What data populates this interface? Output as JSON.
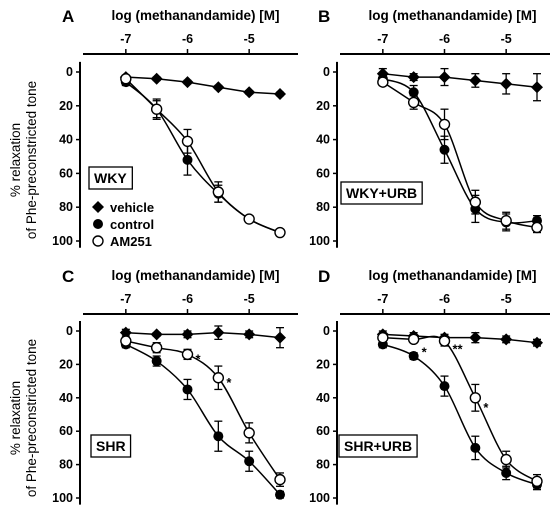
{
  "figure": {
    "ylabel_line1": "% relaxation",
    "ylabel_line2": "of Phe-preconstricted tone"
  },
  "legend": {
    "entries": [
      {
        "name": "vehicle",
        "marker": "diamond"
      },
      {
        "name": "control",
        "marker": "filled-circle"
      },
      {
        "name": "AM251",
        "marker": "open-circle"
      }
    ]
  },
  "chart_data": [
    {
      "panel": "A",
      "type": "scatter",
      "title": "",
      "xlabel": "log (methanandamide) [M]",
      "x_ticks": [
        -7,
        -6,
        -5
      ],
      "xlim": [
        -7.5,
        -4.5
      ],
      "y_ticks": [
        0,
        20,
        40,
        60,
        80,
        100
      ],
      "ylim": [
        100,
        -5
      ],
      "box_label": "WKY",
      "show_legend": true,
      "series": [
        {
          "name": "vehicle",
          "marker": "diamond",
          "x": [
            -7.0,
            -6.5,
            -6.0,
            -5.5,
            -5.0,
            -4.5
          ],
          "y": [
            3,
            4,
            6,
            9,
            12,
            13
          ],
          "err": [
            1,
            1,
            1,
            1,
            1,
            1
          ]
        },
        {
          "name": "control",
          "marker": "filled-circle",
          "x": [
            -7.0,
            -6.5,
            -6.0,
            -5.5,
            -5.0,
            -4.5
          ],
          "y": [
            6,
            22,
            52,
            72,
            87,
            95
          ],
          "err": [
            2,
            6,
            9,
            5,
            2,
            1
          ]
        },
        {
          "name": "AM251",
          "marker": "open-circle",
          "x": [
            -7.0,
            -6.5,
            -6.0,
            -5.5,
            -5.0,
            -4.5
          ],
          "y": [
            4,
            22,
            41,
            71,
            87,
            95
          ],
          "err": [
            2,
            5,
            7,
            6,
            2,
            1
          ]
        }
      ],
      "annotations": []
    },
    {
      "panel": "B",
      "type": "scatter",
      "title": "",
      "xlabel": "log (methanandamide) [M]",
      "x_ticks": [
        -7,
        -6,
        -5
      ],
      "xlim": [
        -7.5,
        -4.5
      ],
      "y_ticks": [
        0,
        20,
        40,
        60,
        80,
        100
      ],
      "ylim": [
        100,
        -5
      ],
      "box_label": "WKY+URB",
      "show_legend": false,
      "series": [
        {
          "name": "vehicle",
          "marker": "diamond",
          "x": [
            -7.0,
            -6.5,
            -6.0,
            -5.5,
            -5.0,
            -4.5
          ],
          "y": [
            1,
            3,
            3,
            5,
            7,
            9
          ],
          "err": [
            3,
            2,
            5,
            4,
            6,
            8
          ]
        },
        {
          "name": "control",
          "marker": "filled-circle",
          "x": [
            -7.0,
            -6.5,
            -6.0,
            -5.5,
            -5.0,
            -4.5
          ],
          "y": [
            4,
            12,
            46,
            81,
            89,
            88
          ],
          "err": [
            2,
            4,
            8,
            8,
            5,
            3
          ]
        },
        {
          "name": "AM251",
          "marker": "open-circle",
          "x": [
            -7.0,
            -6.5,
            -6.0,
            -5.5,
            -5.0,
            -4.5
          ],
          "y": [
            6,
            18,
            31,
            77,
            88,
            92
          ],
          "err": [
            2,
            4,
            9,
            7,
            5,
            3
          ]
        }
      ],
      "annotations": []
    },
    {
      "panel": "C",
      "type": "scatter",
      "title": "",
      "xlabel": "log (methanandamide) [M]",
      "x_ticks": [
        -7,
        -6,
        -5
      ],
      "xlim": [
        -7.5,
        -4.5
      ],
      "y_ticks": [
        0,
        20,
        40,
        60,
        80,
        100
      ],
      "ylim": [
        100,
        -5
      ],
      "box_label": "SHR",
      "show_legend": false,
      "series": [
        {
          "name": "vehicle",
          "marker": "diamond",
          "x": [
            -7.0,
            -6.5,
            -6.0,
            -5.5,
            -5.0,
            -4.5
          ],
          "y": [
            1,
            2,
            2,
            1,
            2,
            4
          ],
          "err": [
            2,
            1,
            2,
            4,
            2,
            6
          ]
        },
        {
          "name": "control",
          "marker": "filled-circle",
          "x": [
            -7.0,
            -6.5,
            -6.0,
            -5.5,
            -5.0,
            -4.5
          ],
          "y": [
            8,
            18,
            35,
            63,
            78,
            98
          ],
          "err": [
            2,
            3,
            6,
            9,
            6,
            2
          ]
        },
        {
          "name": "AM251",
          "marker": "open-circle",
          "x": [
            -7.0,
            -6.5,
            -6.0,
            -5.5,
            -5.0,
            -4.5
          ],
          "y": [
            6,
            10,
            14,
            28,
            61,
            89
          ],
          "err": [
            2,
            3,
            3,
            7,
            6,
            4
          ]
        }
      ],
      "annotations": [
        {
          "text": "*",
          "x": -6.0,
          "y": 14
        },
        {
          "text": "*",
          "x": -5.5,
          "y": 28
        }
      ]
    },
    {
      "panel": "D",
      "type": "scatter",
      "title": "",
      "xlabel": "log (methanandamide) [M]",
      "x_ticks": [
        -7,
        -6,
        -5
      ],
      "xlim": [
        -7.5,
        -4.5
      ],
      "y_ticks": [
        0,
        20,
        40,
        60,
        80,
        100
      ],
      "ylim": [
        100,
        -5
      ],
      "box_label": "SHR+URB",
      "show_legend": false,
      "series": [
        {
          "name": "vehicle",
          "marker": "diamond",
          "x": [
            -7.0,
            -6.5,
            -6.0,
            -5.5,
            -5.0,
            -4.5
          ],
          "y": [
            2,
            3,
            4,
            4,
            5,
            7
          ],
          "err": [
            2,
            2,
            2,
            3,
            2,
            2
          ]
        },
        {
          "name": "control",
          "marker": "filled-circle",
          "x": [
            -7.0,
            -6.5,
            -6.0,
            -5.5,
            -5.0,
            -4.5
          ],
          "y": [
            8,
            15,
            33,
            70,
            85,
            92
          ],
          "err": [
            2,
            2,
            6,
            7,
            4,
            3
          ]
        },
        {
          "name": "AM251",
          "marker": "open-circle",
          "x": [
            -7.0,
            -6.5,
            -6.0,
            -5.5,
            -5.0,
            -4.5
          ],
          "y": [
            4,
            5,
            6,
            40,
            77,
            90
          ],
          "err": [
            2,
            2,
            3,
            8,
            5,
            4
          ]
        }
      ],
      "annotations": [
        {
          "text": "*",
          "x": -6.5,
          "y": 10
        },
        {
          "text": "**",
          "x": -6.0,
          "y": 8
        },
        {
          "text": "*",
          "x": -5.5,
          "y": 43
        }
      ]
    }
  ]
}
